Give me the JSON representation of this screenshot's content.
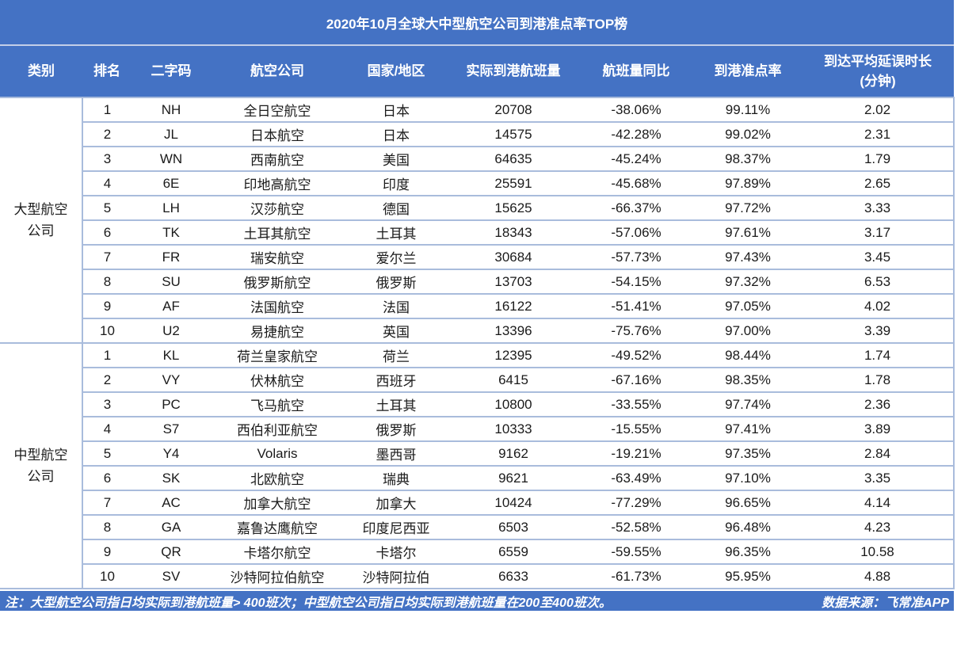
{
  "colors": {
    "header_blue": "#4472C4",
    "border_light": "#A9BCDC",
    "separator_light": "#C3CFE8",
    "text_dark": "#1a1a1a",
    "text_white": "#ffffff"
  },
  "chart_data": {
    "type": "table",
    "title": "2020年10月全球大中型航空公司到港准点率TOP榜",
    "columns": [
      "类别",
      "排名",
      "二字码",
      "航空公司",
      "国家/地区",
      "实际到港航班量",
      "航班量同比",
      "到港准点率",
      "到达平均延误时长",
      "(分钟)"
    ],
    "groups": [
      {
        "category": "大型航空公司",
        "rows": [
          {
            "rank": "1",
            "code": "NH",
            "airline": "全日空航空",
            "country": "日本",
            "flights": "20708",
            "yoy": "-38.06%",
            "otp": "99.11%",
            "delay": "2.02"
          },
          {
            "rank": "2",
            "code": "JL",
            "airline": "日本航空",
            "country": "日本",
            "flights": "14575",
            "yoy": "-42.28%",
            "otp": "99.02%",
            "delay": "2.31"
          },
          {
            "rank": "3",
            "code": "WN",
            "airline": "西南航空",
            "country": "美国",
            "flights": "64635",
            "yoy": "-45.24%",
            "otp": "98.37%",
            "delay": "1.79"
          },
          {
            "rank": "4",
            "code": "6E",
            "airline": "印地高航空",
            "country": "印度",
            "flights": "25591",
            "yoy": "-45.68%",
            "otp": "97.89%",
            "delay": "2.65"
          },
          {
            "rank": "5",
            "code": "LH",
            "airline": "汉莎航空",
            "country": "德国",
            "flights": "15625",
            "yoy": "-66.37%",
            "otp": "97.72%",
            "delay": "3.33"
          },
          {
            "rank": "6",
            "code": "TK",
            "airline": "土耳其航空",
            "country": "土耳其",
            "flights": "18343",
            "yoy": "-57.06%",
            "otp": "97.61%",
            "delay": "3.17"
          },
          {
            "rank": "7",
            "code": "FR",
            "airline": "瑞安航空",
            "country": "爱尔兰",
            "flights": "30684",
            "yoy": "-57.73%",
            "otp": "97.43%",
            "delay": "3.45"
          },
          {
            "rank": "8",
            "code": "SU",
            "airline": "俄罗斯航空",
            "country": "俄罗斯",
            "flights": "13703",
            "yoy": "-54.15%",
            "otp": "97.32%",
            "delay": "6.53"
          },
          {
            "rank": "9",
            "code": "AF",
            "airline": "法国航空",
            "country": "法国",
            "flights": "16122",
            "yoy": "-51.41%",
            "otp": "97.05%",
            "delay": "4.02"
          },
          {
            "rank": "10",
            "code": "U2",
            "airline": "易捷航空",
            "country": "英国",
            "flights": "13396",
            "yoy": "-75.76%",
            "otp": "97.00%",
            "delay": "3.39"
          }
        ]
      },
      {
        "category": "中型航空公司",
        "rows": [
          {
            "rank": "1",
            "code": "KL",
            "airline": "荷兰皇家航空",
            "country": "荷兰",
            "flights": "12395",
            "yoy": "-49.52%",
            "otp": "98.44%",
            "delay": "1.74"
          },
          {
            "rank": "2",
            "code": "VY",
            "airline": "伏林航空",
            "country": "西班牙",
            "flights": "6415",
            "yoy": "-67.16%",
            "otp": "98.35%",
            "delay": "1.78"
          },
          {
            "rank": "3",
            "code": "PC",
            "airline": "飞马航空",
            "country": "土耳其",
            "flights": "10800",
            "yoy": "-33.55%",
            "otp": "97.74%",
            "delay": "2.36"
          },
          {
            "rank": "4",
            "code": "S7",
            "airline": "西伯利亚航空",
            "country": "俄罗斯",
            "flights": "10333",
            "yoy": "-15.55%",
            "otp": "97.41%",
            "delay": "3.89"
          },
          {
            "rank": "5",
            "code": "Y4",
            "airline": "Volaris",
            "country": "墨西哥",
            "flights": "9162",
            "yoy": "-19.21%",
            "otp": "97.35%",
            "delay": "2.84"
          },
          {
            "rank": "6",
            "code": "SK",
            "airline": "北欧航空",
            "country": "瑞典",
            "flights": "9621",
            "yoy": "-63.49%",
            "otp": "97.10%",
            "delay": "3.35"
          },
          {
            "rank": "7",
            "code": "AC",
            "airline": "加拿大航空",
            "country": "加拿大",
            "flights": "10424",
            "yoy": "-77.29%",
            "otp": "96.65%",
            "delay": "4.14"
          },
          {
            "rank": "8",
            "code": "GA",
            "airline": "嘉鲁达鹰航空",
            "country": "印度尼西亚",
            "flights": "6503",
            "yoy": "-52.58%",
            "otp": "96.48%",
            "delay": "4.23"
          },
          {
            "rank": "9",
            "code": "QR",
            "airline": "卡塔尔航空",
            "country": "卡塔尔",
            "flights": "6559",
            "yoy": "-59.55%",
            "otp": "96.35%",
            "delay": "10.58"
          },
          {
            "rank": "10",
            "code": "SV",
            "airline": "沙特阿拉伯航空",
            "country": "沙特阿拉伯",
            "flights": "6633",
            "yoy": "-61.73%",
            "otp": "95.95%",
            "delay": "4.88"
          }
        ]
      }
    ]
  },
  "footer": {
    "note": "注：大型航空公司指日均实际到港航班量> 400班次；中型航空公司指日均实际到港航班量在200至400班次。",
    "source": "数据来源：飞常准APP"
  }
}
